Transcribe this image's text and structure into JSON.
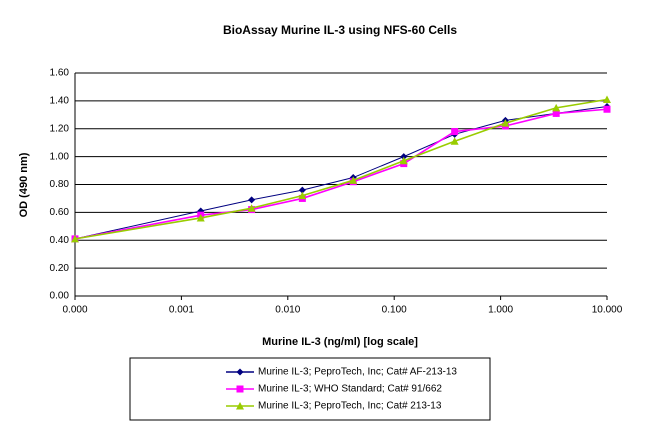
{
  "chart_data": {
    "type": "line",
    "title": "BioAssay  Murine IL-3 using NFS-60 Cells",
    "x_label": "Murine IL-3 (ng/ml) [log scale]",
    "y_label": "OD (490 nm)",
    "x": [
      0.0001,
      0.00152,
      0.00457,
      0.0137,
      0.0412,
      0.123,
      0.37,
      1.11,
      3.33,
      10
    ],
    "x_log": true,
    "xlim": [
      0.0001,
      10
    ],
    "xticks": [
      {
        "value": 0.0001,
        "label": "0.000"
      },
      0.001,
      {
        "value": 0.01,
        "label": "0.010"
      },
      {
        "value": 0.1,
        "label": "0.100"
      },
      {
        "value": 1,
        "label": "1.000"
      },
      {
        "value": 10,
        "label": "10.000"
      }
    ],
    "ylim": [
      0,
      1.6
    ],
    "yticks": [
      {
        "value": 0,
        "label": "0.00"
      },
      {
        "value": 0.2,
        "label": "0.20"
      },
      {
        "value": 0.4,
        "label": "0.40"
      },
      {
        "value": 0.6,
        "label": "0.60"
      },
      {
        "value": 0.8,
        "label": "0.80"
      },
      {
        "value": 1.0,
        "label": "1.00"
      },
      {
        "value": 1.2,
        "label": "1.20"
      },
      {
        "value": 1.4,
        "label": "1.40"
      },
      {
        "value": 1.6,
        "label": "1.60"
      }
    ],
    "grid": true,
    "legend": "bottom",
    "series": [
      {
        "name": "Murine IL-3; PeproTech, Inc; Cat# AF-213-13",
        "color": "#000080",
        "marker": "diamond",
        "values": [
          0.41,
          0.61,
          0.69,
          0.76,
          0.85,
          1.0,
          1.16,
          1.26,
          1.31,
          1.36
        ]
      },
      {
        "name": "Murine IL-3; WHO Standard; Cat# 91/662",
        "color": "#ff00ff",
        "marker": "square",
        "values": [
          0.41,
          0.58,
          0.62,
          0.7,
          0.82,
          0.95,
          1.18,
          1.22,
          1.31,
          1.34
        ]
      },
      {
        "name": "Murine IL-3; PeproTech, Inc; Cat# 213-13",
        "color": "#99cc00",
        "marker": "triangle",
        "values": [
          0.41,
          0.56,
          0.63,
          0.72,
          0.83,
          0.97,
          1.11,
          1.24,
          1.35,
          1.41
        ]
      }
    ]
  }
}
